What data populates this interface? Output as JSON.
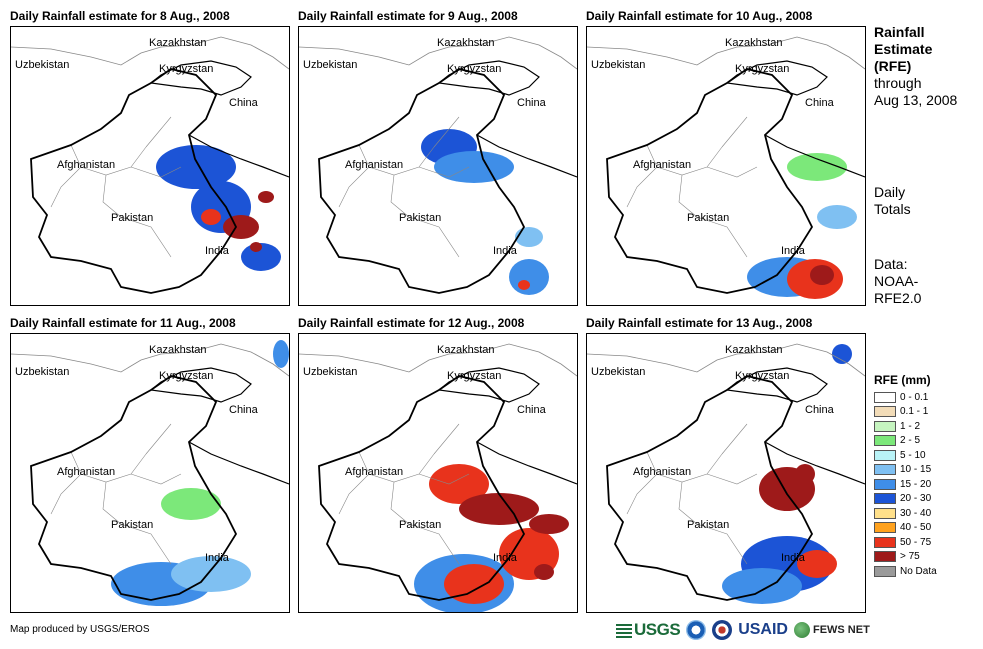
{
  "panels": [
    {
      "title": "Daily Rainfall estimate for 8 Aug., 2008"
    },
    {
      "title": "Daily Rainfall estimate for 9 Aug., 2008"
    },
    {
      "title": "Daily Rainfall estimate for 10 Aug., 2008"
    },
    {
      "title": "Daily Rainfall estimate for 11 Aug., 2008"
    },
    {
      "title": "Daily Rainfall estimate for 12 Aug., 2008"
    },
    {
      "title": "Daily Rainfall estimate for 13 Aug., 2008"
    }
  ],
  "country_labels": {
    "kazakhstan": "Kazakhstan",
    "uzbekistan": "Uzbekistan",
    "kyrgyzstan": "Kyrgyzstan",
    "china": "China",
    "afghanistan": "Afghanistan",
    "pakistan": "Pakistan",
    "india": "India"
  },
  "side": {
    "title_line1": "Rainfall",
    "title_line2": "Estimate",
    "title_line3": "(RFE)",
    "through_label": "through",
    "through_date": "Aug 13, 2008",
    "totals_line1": "Daily",
    "totals_line2": "Totals",
    "data_line1": "Data:",
    "data_line2": "NOAA-",
    "data_line3": "RFE2.0"
  },
  "legend": {
    "title": "RFE (mm)",
    "items": [
      {
        "label": "0 - 0.1",
        "color": "#ffffff"
      },
      {
        "label": "0.1 - 1",
        "color": "#f2dcb8"
      },
      {
        "label": "1 - 2",
        "color": "#c6f5c0"
      },
      {
        "label": "2 - 5",
        "color": "#7ce87a"
      },
      {
        "label": "5 - 10",
        "color": "#b9f3f7"
      },
      {
        "label": "10 - 15",
        "color": "#7fc0f2"
      },
      {
        "label": "15 - 20",
        "color": "#3f8ee8"
      },
      {
        "label": "20 - 30",
        "color": "#1c54d6"
      },
      {
        "label": "30 - 40",
        "color": "#ffe08a"
      },
      {
        "label": "40 - 50",
        "color": "#ffa21e"
      },
      {
        "label": "50 - 75",
        "color": "#e8331c"
      },
      {
        "label": "> 75",
        "color": "#9e1a1a"
      },
      {
        "label": "No Data",
        "color": "#9a9a9a"
      }
    ]
  },
  "credit": "Map produced by USGS/EROS",
  "logos": {
    "usgs": "USGS",
    "usaid": "USAID",
    "fews": "FEWS NET"
  }
}
